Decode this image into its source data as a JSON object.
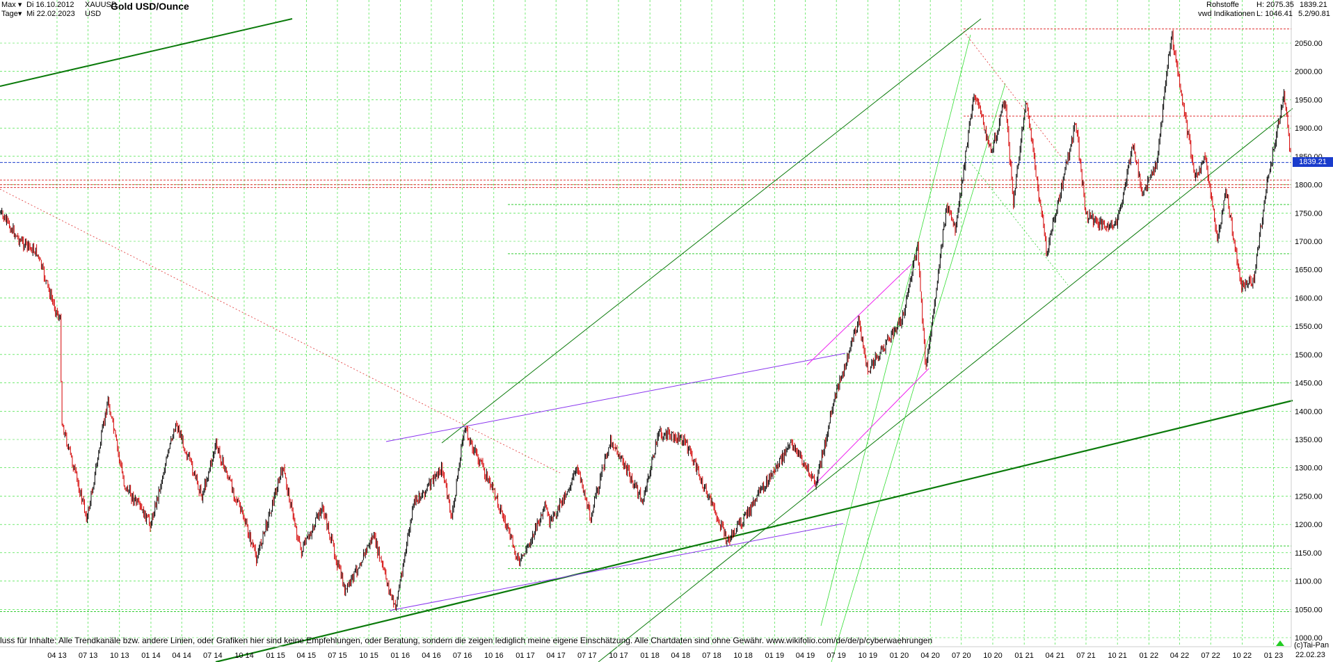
{
  "header": {
    "range_label": "Max",
    "start_date": "Di 16.10.2012",
    "interval_label": "Tage",
    "end_date": "Mi 22.02.2023",
    "symbol": "XAUUSD",
    "currency": "USD",
    "title": "Gold USD/Ounce",
    "category": "Rohstoffe",
    "source": "vwd Indikationen",
    "high_label": "H: 2075.35",
    "low_label": "L: 1046.41",
    "last_value": "1839.21",
    "ratio": "5.2/90.81"
  },
  "price_tag": "1839.21",
  "disclaimer": "luss für Inhalte: Alle Trendkanäle bzw. andere Linien, oder Grafiken hier sind keine Empfehlungen, oder Beratung, sondern die zeigen lediglich meine eigene Einschätzung. Alle Chartdaten sind ohne Gewähr.  www.wikifolio.com/de/de/p/cyberwaehrungen",
  "copyright": "(c)Tai-Pan",
  "axis_end_date": "22.02.23",
  "colors": {
    "candle_up": "#000000",
    "candle_down": "#d40000",
    "trend_green": "#0a7a0a",
    "light_green": "#22cc22",
    "purple": "#8833ee",
    "magenta": "#ee22ee",
    "red_dashed": "#e03030",
    "green_dashed": "#33cc33",
    "blue_dashed": "#1a3ccc",
    "grid": "#22dd22"
  },
  "chart_data": {
    "type": "line",
    "title": "Gold USD/Ounce",
    "xlabel": "",
    "ylabel": "",
    "ylim": [
      1000,
      2100
    ],
    "x_range": [
      "2012-10-16",
      "2023-02-22"
    ],
    "y_ticks": [
      "1000.00",
      "1050.00",
      "1100.00",
      "1150.00",
      "1200.00",
      "1250.00",
      "1300.00",
      "1350.00",
      "1400.00",
      "1450.00",
      "1500.00",
      "1550.00",
      "1600.00",
      "1650.00",
      "1700.00",
      "1750.00",
      "1800.00",
      "1850.00",
      "1900.00",
      "1950.00",
      "2000.00",
      "2050.00"
    ],
    "x_ticks": [
      "04 13",
      "07 13",
      "10 13",
      "01 14",
      "04 14",
      "07 14",
      "10 14",
      "01 15",
      "04 15",
      "07 15",
      "10 15",
      "01 16",
      "04 16",
      "07 16",
      "10 16",
      "01 17",
      "04 17",
      "07 17",
      "10 17",
      "01 18",
      "04 18",
      "07 18",
      "10 18",
      "01 19",
      "04 19",
      "07 19",
      "10 19",
      "01 20",
      "04 20",
      "07 20",
      "10 20",
      "01 21",
      "04 21",
      "07 21",
      "10 21",
      "01 22",
      "04 22",
      "07 22",
      "10 22",
      "01 23"
    ],
    "series": [
      {
        "x": [
          "2012-10-16",
          "2012-12-15",
          "2013-02-01",
          "2013-03-15",
          "2013-04-10",
          "2013-04-15",
          "2013-06-28",
          "2013-08-28",
          "2013-10-15",
          "2013-12-31",
          "2014-03-15",
          "2014-05-30",
          "2014-07-10",
          "2014-09-30",
          "2014-11-06",
          "2015-01-22",
          "2015-03-17",
          "2015-05-18",
          "2015-07-24",
          "2015-10-14",
          "2015-12-17",
          "2016-02-11",
          "2016-03-15",
          "2016-05-02",
          "2016-05-31",
          "2016-07-06",
          "2016-10-07",
          "2016-12-15",
          "2017-03-01",
          "2017-03-15",
          "2017-06-06",
          "2017-07-10",
          "2017-09-08",
          "2017-12-12",
          "2018-01-25",
          "2018-04-11",
          "2018-08-16",
          "2018-10-25",
          "2019-02-20",
          "2019-05-02",
          "2019-06-25",
          "2019-09-04",
          "2019-10-01",
          "2020-01-08",
          "2020-02-24",
          "2020-03-19",
          "2020-05-18",
          "2020-06-15",
          "2020-08-07",
          "2020-09-28",
          "2020-11-06",
          "2020-11-30",
          "2021-01-06",
          "2021-03-08",
          "2021-06-01",
          "2021-06-30",
          "2021-08-09",
          "2021-09-29",
          "2021-11-16",
          "2021-12-15",
          "2022-01-25",
          "2022-03-08",
          "2022-05-16",
          "2022-06-15",
          "2022-07-21",
          "2022-08-15",
          "2022-09-28",
          "2022-11-03",
          "2022-12-15",
          "2023-02-02",
          "2023-02-22"
        ],
        "y": [
          1750,
          1700,
          1680,
          1600,
          1560,
          1380,
          1210,
          1420,
          1270,
          1200,
          1380,
          1250,
          1340,
          1210,
          1140,
          1300,
          1150,
          1230,
          1080,
          1180,
          1050,
          1240,
          1260,
          1300,
          1210,
          1370,
          1250,
          1130,
          1230,
          1200,
          1300,
          1210,
          1350,
          1240,
          1360,
          1350,
          1170,
          1230,
          1345,
          1270,
          1420,
          1560,
          1470,
          1560,
          1690,
          1470,
          1760,
          1720,
          1965,
          1860,
          1950,
          1770,
          1950,
          1680,
          1910,
          1750,
          1730,
          1730,
          1870,
          1780,
          1840,
          2070,
          1810,
          1850,
          1700,
          1790,
          1620,
          1630,
          1810,
          1960,
          1839.21
        ]
      }
    ],
    "horizontal_levels": {
      "red": [
        2075,
        1921,
        1808,
        1800,
        1795
      ],
      "green": [
        1765,
        1678,
        1450,
        1162,
        1122,
        1046
      ],
      "current": 1839.21
    }
  }
}
